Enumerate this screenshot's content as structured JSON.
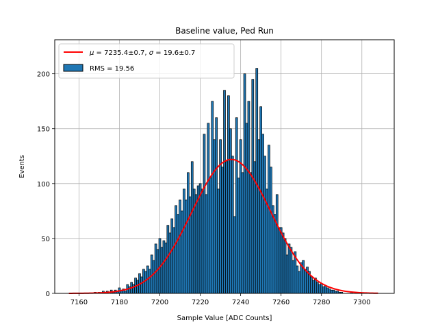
{
  "chart_data": {
    "type": "bar",
    "title": "Baseline value, Ped Run",
    "xlabel": "Sample Value [ADC Counts]",
    "ylabel": "Events",
    "xlim": [
      7148,
      7316
    ],
    "ylim": [
      0,
      231
    ],
    "xticks": [
      7160,
      7180,
      7200,
      7220,
      7240,
      7260,
      7280,
      7300
    ],
    "yticks": [
      0,
      50,
      100,
      150,
      200
    ],
    "grid": true,
    "legend_position": "top-left",
    "bin_width": 1,
    "bins": {
      "x": [
        7168,
        7170,
        7172,
        7174,
        7176,
        7177,
        7178,
        7179,
        7180,
        7181,
        7182,
        7183,
        7184,
        7185,
        7186,
        7187,
        7188,
        7189,
        7190,
        7191,
        7192,
        7193,
        7194,
        7195,
        7196,
        7197,
        7198,
        7199,
        7200,
        7201,
        7202,
        7203,
        7204,
        7205,
        7206,
        7207,
        7208,
        7209,
        7210,
        7211,
        7212,
        7213,
        7214,
        7215,
        7216,
        7217,
        7218,
        7219,
        7220,
        7221,
        7222,
        7223,
        7224,
        7225,
        7226,
        7227,
        7228,
        7229,
        7230,
        7231,
        7232,
        7233,
        7234,
        7235,
        7236,
        7237,
        7238,
        7239,
        7240,
        7241,
        7242,
        7243,
        7244,
        7245,
        7246,
        7247,
        7248,
        7249,
        7250,
        7251,
        7252,
        7253,
        7254,
        7255,
        7256,
        7257,
        7258,
        7259,
        7260,
        7261,
        7262,
        7263,
        7264,
        7265,
        7266,
        7267,
        7268,
        7269,
        7270,
        7271,
        7272,
        7273,
        7274,
        7275,
        7276,
        7277,
        7278,
        7279,
        7280,
        7281,
        7282,
        7283,
        7284,
        7285,
        7286,
        7287,
        7288,
        7289,
        7290,
        7295
      ],
      "y": [
        1,
        1,
        2,
        2,
        3,
        1,
        3,
        2,
        5,
        3,
        4,
        2,
        8,
        6,
        10,
        8,
        14,
        12,
        18,
        15,
        22,
        20,
        25,
        22,
        35,
        30,
        45,
        40,
        50,
        42,
        48,
        46,
        62,
        55,
        68,
        60,
        80,
        72,
        85,
        75,
        95,
        85,
        110,
        88,
        120,
        95,
        90,
        98,
        100,
        95,
        145,
        90,
        155,
        105,
        175,
        140,
        160,
        95,
        140,
        115,
        185,
        120,
        180,
        150,
        125,
        70,
        160,
        105,
        140,
        110,
        200,
        155,
        175,
        110,
        195,
        120,
        205,
        140,
        170,
        145,
        125,
        95,
        135,
        115,
        80,
        72,
        90,
        60,
        60,
        55,
        50,
        35,
        45,
        42,
        30,
        38,
        25,
        20,
        28,
        30,
        22,
        24,
        20,
        15,
        12,
        14,
        10,
        8,
        9,
        6,
        7,
        5,
        4,
        3,
        3,
        2,
        2,
        1,
        1,
        1
      ]
    },
    "series": [
      {
        "name": "RMS = 19.56",
        "kind": "histogram",
        "color": "#1f77b4",
        "edgecolor": "#000000"
      },
      {
        "name": "μ = 7235.4±0.7, σ = 19.6±0.7",
        "kind": "gaussian-fit",
        "color": "#ff0000",
        "mu": 7235.4,
        "sigma": 19.6,
        "amplitude": 122,
        "x_range": [
          7155,
          7308
        ]
      }
    ]
  },
  "legend": {
    "fit_label_parts": {
      "mu_symbol": "μ",
      "mu_text": " = 7235.4±0.7, ",
      "sigma_symbol": "σ",
      "sigma_text": " = 19.6±0.7"
    },
    "hist_label": "RMS = 19.56"
  }
}
